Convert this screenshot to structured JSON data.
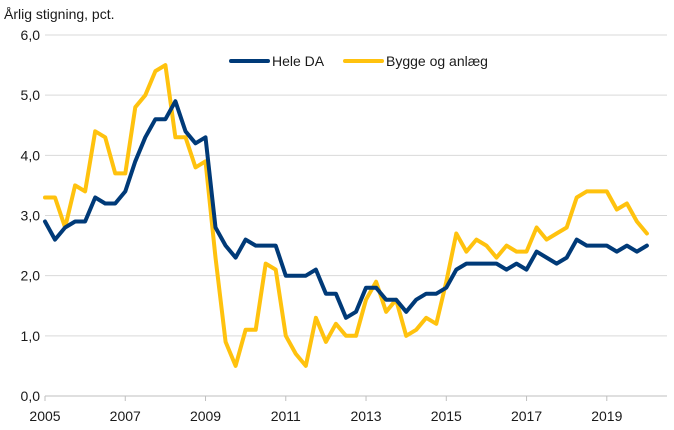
{
  "chart_data": {
    "type": "line",
    "ylabel": "Årlig stigning, pct.",
    "xlabel": "",
    "title": "",
    "ylim": [
      0,
      6
    ],
    "y_ticks": [
      0,
      1,
      2,
      3,
      4,
      5,
      6
    ],
    "y_tick_labels": [
      "0,0",
      "1,0",
      "2,0",
      "3,0",
      "4,0",
      "5,0",
      "6,0"
    ],
    "xlim": [
      2005,
      2020.5
    ],
    "x_ticks": [
      2005,
      2007,
      2009,
      2011,
      2013,
      2015,
      2017,
      2019
    ],
    "x_tick_labels": [
      "2005",
      "2007",
      "2009",
      "2011",
      "2013",
      "2015",
      "2017",
      "2019"
    ],
    "grid": "horizontal",
    "legend_position": "top-center",
    "x": [
      2005.0,
      2005.25,
      2005.5,
      2005.75,
      2006.0,
      2006.25,
      2006.5,
      2006.75,
      2007.0,
      2007.25,
      2007.5,
      2007.75,
      2008.0,
      2008.25,
      2008.5,
      2008.75,
      2009.0,
      2009.25,
      2009.5,
      2009.75,
      2010.0,
      2010.25,
      2010.5,
      2010.75,
      2011.0,
      2011.25,
      2011.5,
      2011.75,
      2012.0,
      2012.25,
      2012.5,
      2012.75,
      2013.0,
      2013.25,
      2013.5,
      2013.75,
      2014.0,
      2014.25,
      2014.5,
      2014.75,
      2015.0,
      2015.25,
      2015.5,
      2015.75,
      2016.0,
      2016.25,
      2016.5,
      2016.75,
      2017.0,
      2017.25,
      2017.5,
      2017.75,
      2018.0,
      2018.25,
      2018.5,
      2018.75,
      2019.0,
      2019.25,
      2019.5,
      2019.75,
      2020.0
    ],
    "series": [
      {
        "name": "Hele DA",
        "color": "#003a78",
        "values": [
          2.9,
          2.6,
          2.8,
          2.9,
          2.9,
          3.3,
          3.2,
          3.2,
          3.4,
          3.9,
          4.3,
          4.6,
          4.6,
          4.9,
          4.4,
          4.2,
          4.3,
          2.8,
          2.5,
          2.3,
          2.6,
          2.5,
          2.5,
          2.5,
          2.0,
          2.0,
          2.0,
          2.1,
          1.7,
          1.7,
          1.3,
          1.4,
          1.8,
          1.8,
          1.6,
          1.6,
          1.4,
          1.6,
          1.7,
          1.7,
          1.8,
          2.1,
          2.2,
          2.2,
          2.2,
          2.2,
          2.1,
          2.2,
          2.1,
          2.4,
          2.3,
          2.2,
          2.3,
          2.6,
          2.5,
          2.5,
          2.5,
          2.4,
          2.5,
          2.4,
          2.5
        ]
      },
      {
        "name": "Bygge og anlæg",
        "color": "#ffc20e",
        "values": [
          3.3,
          3.3,
          2.8,
          3.5,
          3.4,
          4.4,
          4.3,
          3.7,
          3.7,
          4.8,
          5.0,
          5.4,
          5.5,
          4.3,
          4.3,
          3.8,
          3.9,
          2.3,
          0.9,
          0.5,
          1.1,
          1.1,
          2.2,
          2.1,
          1.0,
          0.7,
          0.5,
          1.3,
          0.9,
          1.2,
          1.0,
          1.0,
          1.6,
          1.9,
          1.4,
          1.6,
          1.0,
          1.1,
          1.3,
          1.2,
          1.9,
          2.7,
          2.4,
          2.6,
          2.5,
          2.3,
          2.5,
          2.4,
          2.4,
          2.8,
          2.6,
          2.7,
          2.8,
          3.3,
          3.4,
          3.4,
          3.4,
          3.1,
          3.2,
          2.9,
          2.7
        ]
      }
    ]
  }
}
